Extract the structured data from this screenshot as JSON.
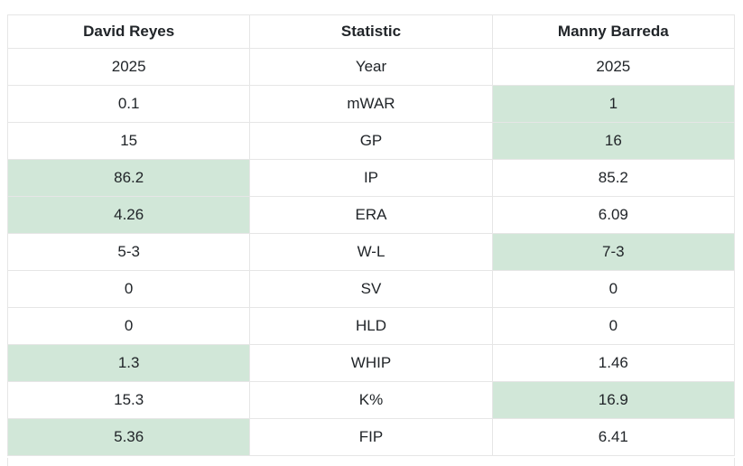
{
  "header": {
    "left_player": "David Reyes",
    "stat_col": "Statistic",
    "right_player": "Manny Barreda"
  },
  "highlight_color": "#d1e7d8",
  "rows": [
    {
      "stat": "Year",
      "left": "2025",
      "right": "2025",
      "winner": "none"
    },
    {
      "stat": "mWAR",
      "left": "0.1",
      "right": "1",
      "winner": "right"
    },
    {
      "stat": "GP",
      "left": "15",
      "right": "16",
      "winner": "right"
    },
    {
      "stat": "IP",
      "left": "86.2",
      "right": "85.2",
      "winner": "left"
    },
    {
      "stat": "ERA",
      "left": "4.26",
      "right": "6.09",
      "winner": "left"
    },
    {
      "stat": "W-L",
      "left": "5-3",
      "right": "7-3",
      "winner": "right"
    },
    {
      "stat": "SV",
      "left": "0",
      "right": "0",
      "winner": "none"
    },
    {
      "stat": "HLD",
      "left": "0",
      "right": "0",
      "winner": "none"
    },
    {
      "stat": "WHIP",
      "left": "1.3",
      "right": "1.46",
      "winner": "left"
    },
    {
      "stat": "K%",
      "left": "15.3",
      "right": "16.9",
      "winner": "right"
    },
    {
      "stat": "FIP",
      "left": "5.36",
      "right": "6.41",
      "winner": "left"
    }
  ]
}
